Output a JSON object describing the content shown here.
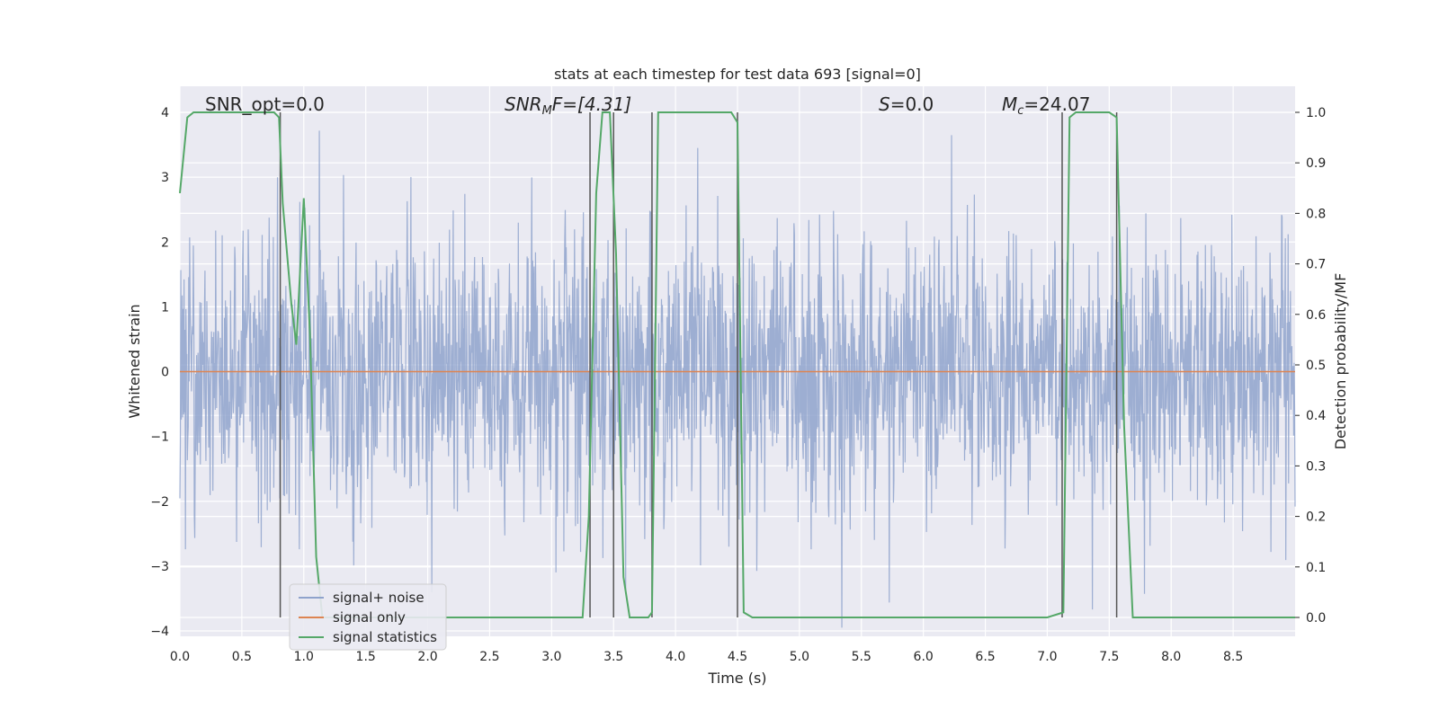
{
  "chart_data": {
    "type": "line",
    "title": "stats at each timestep for test data 693 [signal=0]",
    "xlabel": "Time (s)",
    "ylabel": "Whitened strain",
    "ylabel_right": "Detection probability/MF",
    "xlim": [
      0.0,
      9.0
    ],
    "ylim": [
      -4.0,
      4.0
    ],
    "ylim_right": [
      0.0,
      1.0
    ],
    "x_ticks": [
      "0.0",
      "0.5",
      "1.0",
      "1.5",
      "2.0",
      "2.5",
      "3.0",
      "3.5",
      "4.0",
      "4.5",
      "5.0",
      "5.5",
      "6.0",
      "6.5",
      "7.0",
      "7.5",
      "8.0",
      "8.5"
    ],
    "y_ticks": [
      "4",
      "3",
      "2",
      "1",
      "0",
      "−1",
      "−2",
      "−3",
      "−4"
    ],
    "y_ticks_right": [
      "1.0",
      "0.9",
      "0.8",
      "0.7",
      "0.6",
      "0.5",
      "0.4",
      "0.3",
      "0.2",
      "0.1",
      "0.0"
    ],
    "grid": true,
    "legend_position": "lower-left",
    "annotations": {
      "snr_opt": "SNR_opt=0.0",
      "snr_mf_base": "SNR",
      "snr_mf_sub": "M",
      "snr_mf_rest": "F=[4.31]",
      "s_base": "S",
      "s_rest": "=0.0",
      "mc_base": "M",
      "mc_sub": "c",
      "mc_rest": "=24.07"
    },
    "series": [
      {
        "name": "signal+ noise",
        "color": "#8fa3cc",
        "description_values": "noise band approx mean 0, spread ~±2.5, peaks near ±3.9",
        "noise_sigma": 1.0
      },
      {
        "name": "signal only",
        "color": "#dd8452",
        "x": [
          0.0,
          9.0
        ],
        "y": [
          0.0,
          0.0
        ]
      },
      {
        "name": "signal statistics",
        "color": "#55a868",
        "axis": "right",
        "x": [
          0.0,
          0.06,
          0.11,
          0.5,
          0.76,
          0.8,
          0.83,
          0.9,
          0.94,
          1.0,
          1.05,
          1.1,
          1.15,
          1.2,
          3.25,
          3.3,
          3.36,
          3.41,
          3.47,
          3.52,
          3.58,
          3.63,
          3.78,
          3.81,
          3.86,
          3.91,
          4.45,
          4.5,
          4.55,
          4.62,
          4.7,
          5.2,
          7.0,
          7.13,
          7.18,
          7.23,
          7.5,
          7.56,
          7.62,
          7.69,
          8.0,
          9.0
        ],
        "y": [
          0.84,
          0.99,
          1.0,
          1.0,
          1.0,
          0.99,
          0.82,
          0.62,
          0.54,
          0.83,
          0.56,
          0.12,
          0.0,
          0.0,
          0.0,
          0.2,
          0.84,
          1.0,
          1.0,
          0.72,
          0.08,
          0.0,
          0.0,
          0.01,
          1.0,
          1.0,
          1.0,
          0.98,
          0.01,
          0.0,
          0.0,
          0.0,
          0.0,
          0.01,
          0.99,
          1.0,
          1.0,
          0.99,
          0.38,
          0.0,
          0.0,
          0.0
        ]
      }
    ],
    "vertical_markers_x": [
      0.81,
      3.31,
      3.5,
      3.81,
      4.5,
      7.12,
      7.56
    ]
  }
}
